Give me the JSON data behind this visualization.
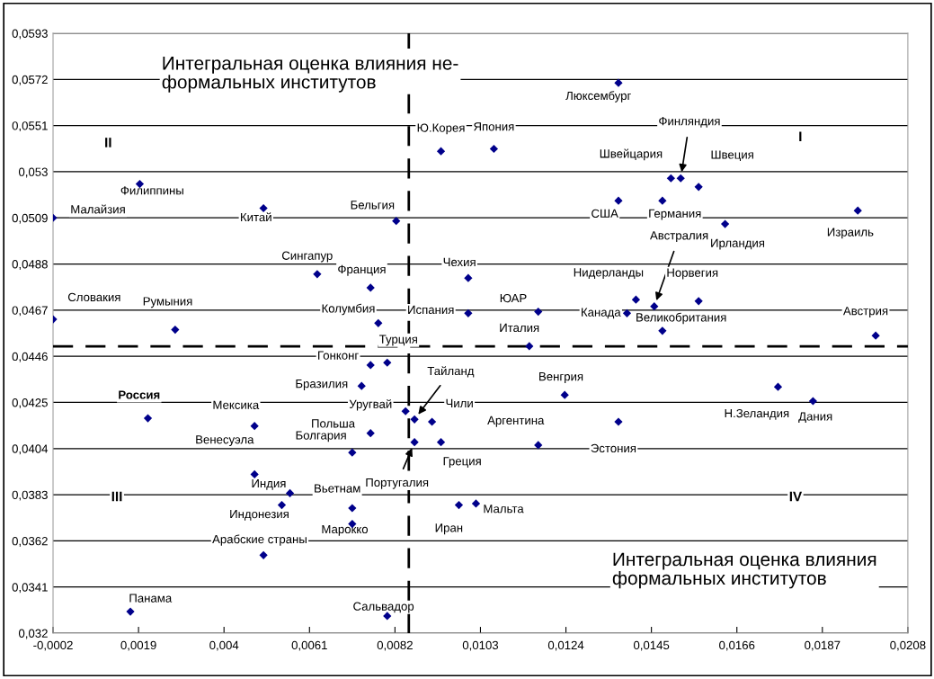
{
  "chart_data": {
    "type": "scatter",
    "x": [
      0.01369,
      0.00933,
      0.01063,
      0.01522,
      0.01498,
      0.01566,
      0.01369,
      0.01477,
      0.01957,
      0.01631,
      0.01,
      0.01,
      0.01172,
      0.01412,
      0.01457,
      0.01566,
      0.0139,
      0.01477,
      0.02001,
      0.0115,
      0.00801,
      0.0076,
      0.00738,
      0.00846,
      0.00868,
      0.00911,
      0.00213,
      0.00475,
      0.0076,
      0.00868,
      0.00933,
      0.00715,
      0.00475,
      0.00562,
      0.00542,
      0.00715,
      0.00715,
      0.00497,
      0.0017,
      0.00801,
      0.00977,
      0.01019,
      0.01237,
      0.01172,
      0.01369,
      0.01761,
      0.01847,
      -0.0002,
      0.00193,
      0.00497,
      0.00823,
      0.00629,
      0.0076,
      -0.0002,
      0.0028,
      0.00779
    ],
    "values": [
      0.05704,
      0.05393,
      0.05404,
      0.0527,
      0.0527,
      0.05231,
      0.05168,
      0.05168,
      0.05123,
      0.05062,
      0.04816,
      0.04656,
      0.04663,
      0.04718,
      0.04687,
      0.04711,
      0.04656,
      0.04576,
      0.04554,
      0.04506,
      0.04431,
      0.0442,
      0.04325,
      0.0421,
      0.04173,
      0.04162,
      0.04178,
      0.04143,
      0.0411,
      0.04069,
      0.04069,
      0.04022,
      0.03923,
      0.03837,
      0.03783,
      0.03769,
      0.03697,
      0.03555,
      0.03298,
      0.03278,
      0.03783,
      0.0379,
      0.04284,
      0.04056,
      0.04162,
      0.04321,
      0.04256,
      0.0509,
      0.05244,
      0.05134,
      0.05076,
      0.04834,
      0.04772,
      0.04628,
      0.04581,
      0.04611
    ],
    "color": "#00008b",
    "marker": "diamond",
    "grid": "y",
    "legend": false,
    "xlim": [
      -0.0002,
      0.0208
    ],
    "xticks": [
      {
        "value": -0.0002,
        "label": "-0,0002"
      },
      {
        "value": 0.0019,
        "label": "0,0019"
      },
      {
        "value": 0.004,
        "label": "0,004"
      },
      {
        "value": 0.0061,
        "label": "0,0061"
      },
      {
        "value": 0.0082,
        "label": "0,0082"
      },
      {
        "value": 0.0103,
        "label": "0,0103"
      },
      {
        "value": 0.0124,
        "label": "0,0124"
      },
      {
        "value": 0.0145,
        "label": "0,0145"
      },
      {
        "value": 0.0166,
        "label": "0,0166"
      },
      {
        "value": 0.0187,
        "label": "0,0187"
      },
      {
        "value": 0.0208,
        "label": "0,0208"
      }
    ],
    "ylim": [
      0.032,
      0.0593
    ],
    "yticks": [
      {
        "value": 0.032,
        "label": "0,032"
      },
      {
        "value": 0.0341,
        "label": "0,0341"
      },
      {
        "value": 0.0362,
        "label": "0,0362"
      },
      {
        "value": 0.0383,
        "label": "0,0383"
      },
      {
        "value": 0.0404,
        "label": "0,0404"
      },
      {
        "value": 0.0425,
        "label": "0,0425"
      },
      {
        "value": 0.0446,
        "label": "0,0446"
      },
      {
        "value": 0.0467,
        "label": "0,0467"
      },
      {
        "value": 0.0488,
        "label": "0,0488"
      },
      {
        "value": 0.0509,
        "label": "0,0509"
      },
      {
        "value": 0.053,
        "label": "0,053"
      },
      {
        "value": 0.0551,
        "label": "0,0551"
      },
      {
        "value": 0.0572,
        "label": "0,0572"
      },
      {
        "value": 0.0593,
        "label": "0,0593"
      }
    ],
    "ref_lines": [
      {
        "axis": "x",
        "value": 0.00854,
        "color": "#000000",
        "line_style": "dashed"
      },
      {
        "axis": "y",
        "value": 0.04505,
        "color": "#000000",
        "line_style": "dashed"
      }
    ],
    "annotations": [
      {
        "text": "Люксембург",
        "x": 0.01369,
        "y": 0.05704
      },
      {
        "text": "Ю.Корея",
        "x": 0.00933,
        "y": 0.05393
      },
      {
        "text": "Япония",
        "x": 0.01063,
        "y": 0.05404
      },
      {
        "text": "Финляндия",
        "x": 0.01522,
        "y": 0.0527
      },
      {
        "text": "Швейцария",
        "x": 0.01498,
        "y": 0.0527
      },
      {
        "text": "Швеция",
        "x": 0.01566,
        "y": 0.05231
      },
      {
        "text": "США",
        "x": 0.01369,
        "y": 0.05168
      },
      {
        "text": "Германия",
        "x": 0.01477,
        "y": 0.05168
      },
      {
        "text": "Израиль",
        "x": 0.01957,
        "y": 0.05123
      },
      {
        "text": "Ирландия",
        "x": 0.01631,
        "y": 0.05062
      },
      {
        "text": "Чехия",
        "x": 0.01,
        "y": 0.04816
      },
      {
        "text": "Испания",
        "x": 0.01,
        "y": 0.04656
      },
      {
        "text": "ЮАР",
        "x": 0.01172,
        "y": 0.04663
      },
      {
        "text": "Нидерланды",
        "x": 0.01412,
        "y": 0.04718
      },
      {
        "text": "Австралия",
        "x": 0.01457,
        "y": 0.04687
      },
      {
        "text": "Норвегия",
        "x": 0.01566,
        "y": 0.04711
      },
      {
        "text": "Канада",
        "x": 0.0139,
        "y": 0.04656
      },
      {
        "text": "Великобритания",
        "x": 0.01477,
        "y": 0.04576
      },
      {
        "text": "Австрия",
        "x": 0.02001,
        "y": 0.04554
      },
      {
        "text": "Италия",
        "x": 0.0115,
        "y": 0.04506
      },
      {
        "text": "Турция",
        "x": 0.00801,
        "y": 0.04431
      },
      {
        "text": "Гонконг",
        "x": 0.0076,
        "y": 0.0442
      },
      {
        "text": "Бразилия",
        "x": 0.00738,
        "y": 0.04325
      },
      {
        "text": "Уругвай",
        "x": 0.00846,
        "y": 0.0421
      },
      {
        "text": "Тайланд",
        "x": 0.00868,
        "y": 0.04173
      },
      {
        "text": "Чили",
        "x": 0.00911,
        "y": 0.04162
      },
      {
        "text": "Россия",
        "x": 0.00213,
        "y": 0.04178
      },
      {
        "text": "Мексика",
        "x": 0.00475,
        "y": 0.04143
      },
      {
        "text": "Польша",
        "x": 0.0076,
        "y": 0.0411
      },
      {
        "text": "Португалия",
        "x": 0.00868,
        "y": 0.04069
      },
      {
        "text": "Греция",
        "x": 0.00933,
        "y": 0.04069
      },
      {
        "text": "Болгария",
        "x": 0.00715,
        "y": 0.04022
      },
      {
        "text": "Венесуэла",
        "x": 0.00475,
        "y": 0.03923
      },
      {
        "text": "Индия",
        "x": 0.00562,
        "y": 0.03837
      },
      {
        "text": "Индонезия",
        "x": 0.00542,
        "y": 0.03783
      },
      {
        "text": "Вьетнам",
        "x": 0.00715,
        "y": 0.03769
      },
      {
        "text": "Марокко",
        "x": 0.00715,
        "y": 0.03697
      },
      {
        "text": "Арабские страны",
        "x": 0.00497,
        "y": 0.03555
      },
      {
        "text": "Панама",
        "x": 0.0017,
        "y": 0.03298
      },
      {
        "text": "Сальвадор",
        "x": 0.00801,
        "y": 0.03278
      },
      {
        "text": "Иран",
        "x": 0.00977,
        "y": 0.03783
      },
      {
        "text": "Мальта",
        "x": 0.01019,
        "y": 0.0379
      },
      {
        "text": "Венгрия",
        "x": 0.01237,
        "y": 0.04284
      },
      {
        "text": "Аргентина",
        "x": 0.01172,
        "y": 0.04056
      },
      {
        "text": "Эстония",
        "x": 0.01369,
        "y": 0.04162
      },
      {
        "text": "Н.Зеландия",
        "x": 0.01761,
        "y": 0.04321
      },
      {
        "text": "Дания",
        "x": 0.01847,
        "y": 0.04256
      },
      {
        "text": "Малайзия",
        "x": -0.0002,
        "y": 0.0509
      },
      {
        "text": "Филиппины",
        "x": 0.00193,
        "y": 0.05244
      },
      {
        "text": "Китай",
        "x": 0.00497,
        "y": 0.05134
      },
      {
        "text": "Бельгия",
        "x": 0.00823,
        "y": 0.05076
      },
      {
        "text": "Сингапур",
        "x": 0.00629,
        "y": 0.04834
      },
      {
        "text": "Франция",
        "x": 0.0076,
        "y": 0.04772
      },
      {
        "text": "Словакия",
        "x": -0.0002,
        "y": 0.04628
      },
      {
        "text": "Румыния",
        "x": 0.0028,
        "y": 0.04581
      },
      {
        "text": "Колумбия",
        "x": 0.00779,
        "y": 0.04611
      },
      "II",
      "I",
      "III",
      "IV",
      "Интегральная оценка влияния не-\nформальных институтов",
      "Интегральная оценка влияния\nформальных институтов"
    ]
  }
}
